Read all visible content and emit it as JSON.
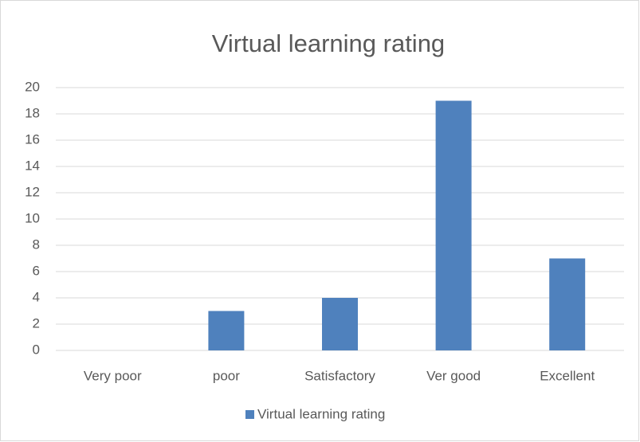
{
  "chart_data": {
    "type": "bar",
    "title": "Virtual learning rating",
    "categories": [
      "Very poor",
      "poor",
      "Satisfactory",
      "Ver good",
      "Excellent"
    ],
    "series": [
      {
        "name": "Virtual learning rating",
        "color": "#4f81bd",
        "values": [
          0,
          3,
          4,
          19,
          7
        ]
      }
    ],
    "ylim": [
      0,
      20
    ],
    "yticks": [
      0,
      2,
      4,
      6,
      8,
      10,
      12,
      14,
      16,
      18,
      20
    ],
    "grid": true,
    "legend": "bottom"
  }
}
